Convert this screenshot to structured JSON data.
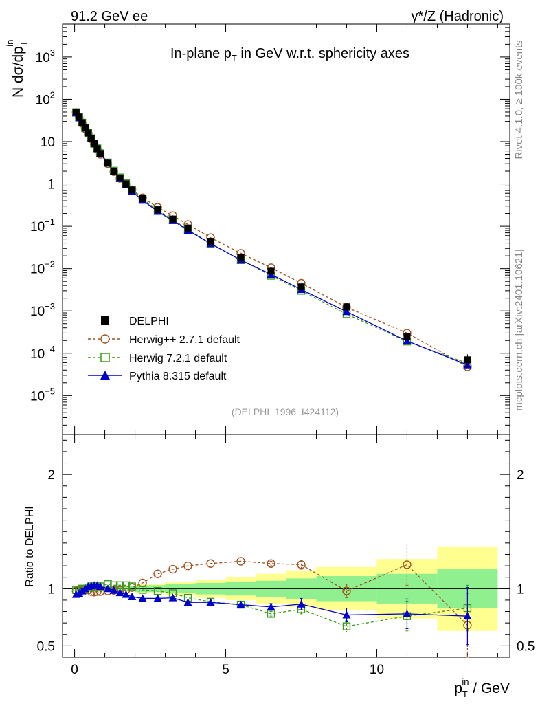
{
  "header": {
    "left_label": "91.2 GeV ee",
    "right_label_prefix": "γ*/Z",
    "right_label_suffix": "(Hadronic)"
  },
  "side_labels": {
    "top": "Rivet 4.1.0, ≥ 100k events",
    "bottom": "mcplots.cern.ch [arXiv:2401.10621]"
  },
  "colors": {
    "data": "#000000",
    "herwig_pp": "#a0521e",
    "herwig7": "#3c9a1c",
    "pythia": "#0000cc",
    "band_inner": "#90f090",
    "band_outer": "#ffff90"
  },
  "chart_data": [
    {
      "type": "scatter",
      "name": "main",
      "title": "In-plane p_T in GeV w.r.t. sphericity axes",
      "title_parts": {
        "a": "In-plane p",
        "sub": "T",
        "b": " in GeV w.r.t. sphericity axes"
      },
      "ylabel_parts": {
        "a": "N  dσ/dp",
        "sub": "T",
        "sup": "in"
      },
      "watermark": "(DELPHI_1996_I424112)",
      "yscale": "log",
      "xlim": [
        -0.4,
        14.4
      ],
      "ylim": [
        1.2e-06,
        6000
      ],
      "y_tick_labels": [
        {
          "value": 1e-05,
          "mant": "10",
          "exp": "−5"
        },
        {
          "value": 0.0001,
          "mant": "10",
          "exp": "−4"
        },
        {
          "value": 0.001,
          "mant": "10",
          "exp": "−3"
        },
        {
          "value": 0.01,
          "mant": "10",
          "exp": "−2"
        },
        {
          "value": 0.1,
          "mant": "10",
          "exp": "−1"
        },
        {
          "value": 1,
          "mant": "1",
          "exp": ""
        },
        {
          "value": 10,
          "mant": "10",
          "exp": ""
        },
        {
          "value": 100,
          "mant": "10",
          "exp": "2"
        },
        {
          "value": 1000,
          "mant": "10",
          "exp": "3"
        }
      ],
      "x": [
        0.05,
        0.15,
        0.25,
        0.35,
        0.45,
        0.55,
        0.65,
        0.75,
        0.85,
        1.1,
        1.3,
        1.5,
        1.7,
        1.9,
        2.25,
        2.75,
        3.25,
        3.75,
        4.5,
        5.5,
        6.5,
        7.5,
        9,
        11,
        13
      ],
      "series": [
        {
          "name": "DELPHI",
          "key": "data",
          "values": [
            50,
            38,
            28,
            21,
            16,
            12,
            9.0,
            6.8,
            5.2,
            3.1,
            2.0,
            1.38,
            1.0,
            0.72,
            0.45,
            0.245,
            0.148,
            0.091,
            0.044,
            0.0185,
            0.0087,
            0.0037,
            0.00125,
            0.00025,
            7e-05
          ]
        },
        {
          "name": "Herwig++ 2.7.1 default",
          "key": "herwig_pp",
          "values": [
            49,
            37,
            27,
            20,
            15.5,
            11.6,
            8.7,
            6.6,
            5.0,
            3.0,
            1.95,
            1.35,
            0.99,
            0.73,
            0.47,
            0.28,
            0.178,
            0.11,
            0.054,
            0.023,
            0.0105,
            0.0045,
            0.00122,
            0.0003,
            4.8e-05
          ]
        },
        {
          "name": "Herwig 7.2.1 default",
          "key": "herwig7",
          "values": [
            49.5,
            37.5,
            28,
            21,
            16,
            12,
            8.9,
            6.9,
            5.3,
            3.2,
            2.05,
            1.42,
            1.03,
            0.73,
            0.44,
            0.24,
            0.142,
            0.084,
            0.039,
            0.0159,
            0.0068,
            0.003,
            0.00084,
            0.00019,
            5.8e-05
          ]
        },
        {
          "name": "Pythia 8.315 default",
          "key": "pythia",
          "values": [
            47.5,
            36.5,
            27.5,
            21,
            16.3,
            12.3,
            9.2,
            7.0,
            5.3,
            3.1,
            1.97,
            1.33,
            0.95,
            0.67,
            0.41,
            0.224,
            0.136,
            0.08,
            0.039,
            0.0159,
            0.0073,
            0.0032,
            0.00096,
            0.000195,
            5.3e-05
          ]
        }
      ]
    },
    {
      "type": "scatter",
      "name": "ratio",
      "ylabel": "Ratio to DELPHI",
      "xlabel_parts": {
        "a": "p",
        "sub": "T",
        "sup": "in",
        "b": " / GeV"
      },
      "xlim": [
        -0.4,
        14.4
      ],
      "ylim": [
        0.4,
        2.35
      ],
      "x_tick_labels": [
        "0",
        "5",
        "10"
      ],
      "x_ticks": [
        0,
        5,
        10
      ],
      "y_tick_labels": [
        "0.5",
        "1",
        "2"
      ],
      "y_ticks": [
        0.5,
        1,
        2
      ],
      "bands": [
        {
          "x0": 0,
          "x1": 2,
          "inner": 0.02,
          "outer": 0.02
        },
        {
          "x0": 2,
          "x1": 3,
          "inner": 0.03,
          "outer": 0.04
        },
        {
          "x0": 3,
          "x1": 4,
          "inner": 0.04,
          "outer": 0.06
        },
        {
          "x0": 4,
          "x1": 5,
          "inner": 0.05,
          "outer": 0.08
        },
        {
          "x0": 5,
          "x1": 6,
          "inner": 0.06,
          "outer": 0.1
        },
        {
          "x0": 6,
          "x1": 7,
          "inner": 0.07,
          "outer": 0.13
        },
        {
          "x0": 7,
          "x1": 8,
          "inner": 0.09,
          "outer": 0.16
        },
        {
          "x0": 8,
          "x1": 10,
          "inner": 0.11,
          "outer": 0.19
        },
        {
          "x0": 10,
          "x1": 12,
          "inner": 0.13,
          "outer": 0.26
        },
        {
          "x0": 12,
          "x1": 14,
          "inner": 0.17,
          "outer": 0.37
        }
      ],
      "series": [
        {
          "name": "Herwig++ 2.7.1 default",
          "key": "herwig_pp",
          "values": [
            0.98,
            0.98,
            0.985,
            0.99,
            0.99,
            0.975,
            0.97,
            0.975,
            0.975,
            0.98,
            0.985,
            0.985,
            0.99,
            1.01,
            1.05,
            1.13,
            1.17,
            1.2,
            1.22,
            1.24,
            1.22,
            1.21,
            0.98,
            1.21,
            0.68
          ],
          "errors": [
            0.01,
            0.01,
            0.01,
            0.01,
            0.01,
            0.01,
            0.01,
            0.01,
            0.01,
            0.01,
            0.01,
            0.01,
            0.01,
            0.01,
            0.01,
            0.01,
            0.01,
            0.01,
            0.01,
            0.01,
            0.02,
            0.04,
            0.06,
            0.18,
            0.28
          ]
        },
        {
          "name": "Herwig 7.2.1 default",
          "key": "herwig7",
          "values": [
            0.99,
            0.99,
            1.0,
            1.0,
            1.01,
            1.02,
            1.02,
            1.02,
            1.02,
            1.04,
            1.03,
            1.03,
            1.03,
            1.02,
            0.99,
            0.98,
            0.96,
            0.92,
            0.885,
            0.86,
            0.78,
            0.82,
            0.67,
            0.76,
            0.83
          ],
          "errors": [
            0.01,
            0.01,
            0.01,
            0.01,
            0.01,
            0.01,
            0.01,
            0.01,
            0.01,
            0.01,
            0.01,
            0.01,
            0.01,
            0.01,
            0.01,
            0.01,
            0.01,
            0.01,
            0.01,
            0.01,
            0.02,
            0.04,
            0.05,
            0.13,
            0.2
          ]
        },
        {
          "name": "Pythia 8.315 default",
          "key": "pythia",
          "values": [
            0.95,
            0.96,
            0.98,
            1.0,
            1.02,
            1.025,
            1.03,
            1.03,
            1.02,
            1.0,
            0.985,
            0.965,
            0.95,
            0.93,
            0.915,
            0.915,
            0.92,
            0.88,
            0.88,
            0.86,
            0.84,
            0.865,
            0.77,
            0.78,
            0.76
          ],
          "errors": [
            0.01,
            0.01,
            0.01,
            0.01,
            0.01,
            0.01,
            0.01,
            0.01,
            0.01,
            0.01,
            0.01,
            0.01,
            0.01,
            0.01,
            0.01,
            0.01,
            0.01,
            0.01,
            0.01,
            0.01,
            0.03,
            0.05,
            0.06,
            0.13,
            0.25
          ]
        }
      ]
    }
  ]
}
